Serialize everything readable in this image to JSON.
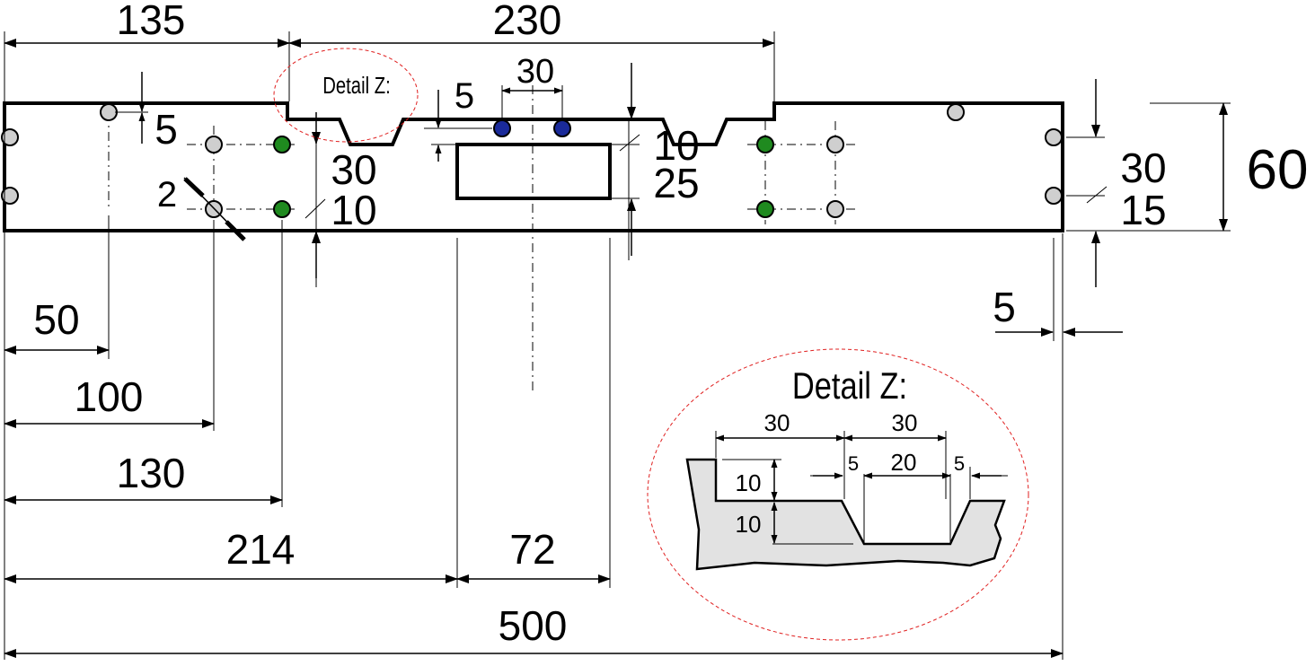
{
  "colors": {
    "outline": "#000000",
    "hole_grey": "#cfcfcf",
    "hole_green": "#1f8a1f",
    "hole_blue": "#1a2a9a",
    "detail_fill": "#e2e2e2",
    "detail_circle": "#e02020"
  },
  "top_dims": {
    "left": "135",
    "right": "230",
    "slot": "30",
    "step": "5"
  },
  "side_dims": {
    "offset_5": "5",
    "diameter_2": "2",
    "v30": "30",
    "v10": "10"
  },
  "window_dims": {
    "v10": "10",
    "v25": "25"
  },
  "right_dims": {
    "v30": "30",
    "v15": "15",
    "h60": "60",
    "h5": "5"
  },
  "bottom_dims": {
    "d50": "50",
    "d100": "100",
    "d130": "130",
    "d214": "214",
    "d72": "72",
    "d500": "500"
  },
  "detail": {
    "small_label": "Detail Z:",
    "large_label": "Detail Z:",
    "w30a": "30",
    "w30b": "30",
    "w5a": "5",
    "w20": "20",
    "w5b": "5",
    "h10a": "10",
    "h10b": "10"
  }
}
